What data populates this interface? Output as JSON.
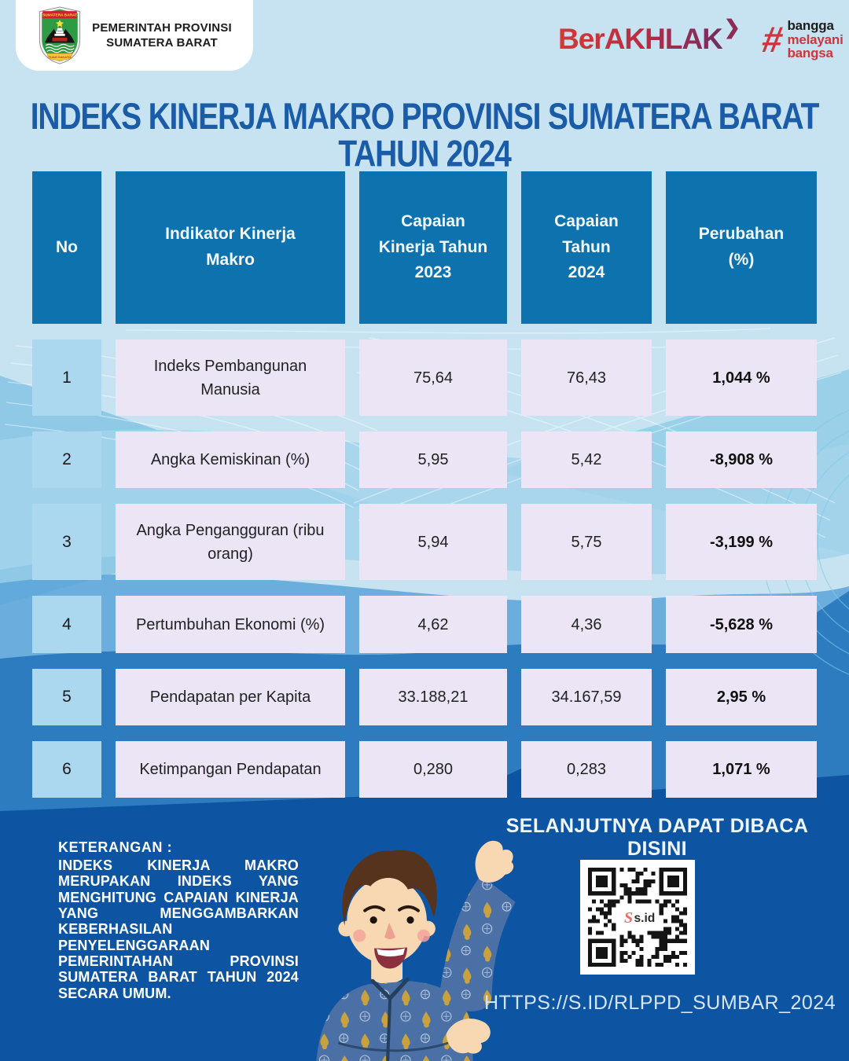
{
  "header": {
    "org_line1": "PEMERINTAH PROVINSI",
    "org_line2": "SUMATERA BARAT",
    "logo": {
      "banner_text": "SUMATERA BARAT",
      "scroll_text": "TUAH SAKATO"
    },
    "berakhlak": {
      "text": "BerAKHLAK",
      "chevron": "❯"
    },
    "bangga": {
      "hash": "#",
      "line1": "bangga",
      "line2": "melayani",
      "line3": "bangsa"
    }
  },
  "title": {
    "line1": "INDEKS KINERJA MAKRO PROVINSI SUMATERA BARAT",
    "line2": "TAHUN 2024"
  },
  "table": {
    "columns": [
      "No",
      "Indikator Kinerja Makro",
      "Capaian Kinerja Tahun 2023",
      "Capaian Tahun 2024",
      "Perubahan (%)"
    ],
    "rows": [
      {
        "no": "1",
        "indicator": "Indeks Pembangunan Manusia",
        "y2023": "75,64",
        "y2024": "76,43",
        "change": "1,044 %"
      },
      {
        "no": "2",
        "indicator": "Angka Kemiskinan (%)",
        "y2023": "5,95",
        "y2024": "5,42",
        "change": "-8,908 %"
      },
      {
        "no": "3",
        "indicator": "Angka Pengangguran (ribu orang)",
        "y2023": "5,94",
        "y2024": "5,75",
        "change": "-3,199 %"
      },
      {
        "no": "4",
        "indicator": "Pertumbuhan Ekonomi (%)",
        "y2023": "4,62",
        "y2024": "4,36",
        "change": "-5,628 %"
      },
      {
        "no": "5",
        "indicator": "Pendapatan per Kapita",
        "y2023": "33.188,21",
        "y2024": "34.167,59",
        "change": "2,95 %"
      },
      {
        "no": "6",
        "indicator": "Ketimpangan Pendapatan",
        "y2023": "0,280",
        "y2024": "0,283",
        "change": "1,071 %"
      }
    ]
  },
  "footer": {
    "read_more": "SELANJUTNYA DAPAT DIBACA DISINI",
    "keterangan_title": "KETERANGAN :",
    "keterangan_body": "INDEKS KINERJA MAKRO MERUPAKAN INDEKS YANG MENGHITUNG CAPAIAN KINERJA YANG MENGGAMBARKAN KEBERHASILAN PENYELENGGARAAN PEMERINTAHAN PROVINSI SUMATERA BARAT TAHUN 2024 SECARA UMUM.",
    "qr_center_label": "s.id",
    "url": "HTTPS://S.ID/RLPPD_SUMBAR_2024"
  },
  "colors": {
    "page_bg_light": "#c7e3f1",
    "wave_medium": "#8fc9e6",
    "wave_strong": "#2e7cc0",
    "bottom_dark": "#0d55a3",
    "header_cell_blue": "#0e72ae",
    "no_cell_blue": "#abd7ef",
    "data_cell_lavender": "#ece5f6",
    "title_blue": "#1b5ca8",
    "berakhlak_red": "#c2333b",
    "bangga_red": "#d0343c"
  },
  "chart_data": {
    "type": "table",
    "title": "INDEKS KINERJA MAKRO PROVINSI SUMATERA BARAT TAHUN 2024",
    "columns": [
      "No",
      "Indikator Kinerja Makro",
      "Capaian Kinerja Tahun 2023",
      "Capaian Tahun 2024",
      "Perubahan (%)"
    ],
    "rows": [
      [
        "1",
        "Indeks Pembangunan Manusia",
        "75,64",
        "76,43",
        "1,044 %"
      ],
      [
        "2",
        "Angka Kemiskinan (%)",
        "5,95",
        "5,42",
        "-8,908 %"
      ],
      [
        "3",
        "Angka Pengangguran (ribu orang)",
        "5,94",
        "5,75",
        "-3,199 %"
      ],
      [
        "4",
        "Pertumbuhan Ekonomi (%)",
        "4,62",
        "4,36",
        "-5,628 %"
      ],
      [
        "5",
        "Pendapatan per Kapita",
        "33.188,21",
        "34.167,59",
        "2,95 %"
      ],
      [
        "6",
        "Ketimpangan Pendapatan",
        "0,280",
        "0,283",
        "1,071 %"
      ]
    ]
  }
}
